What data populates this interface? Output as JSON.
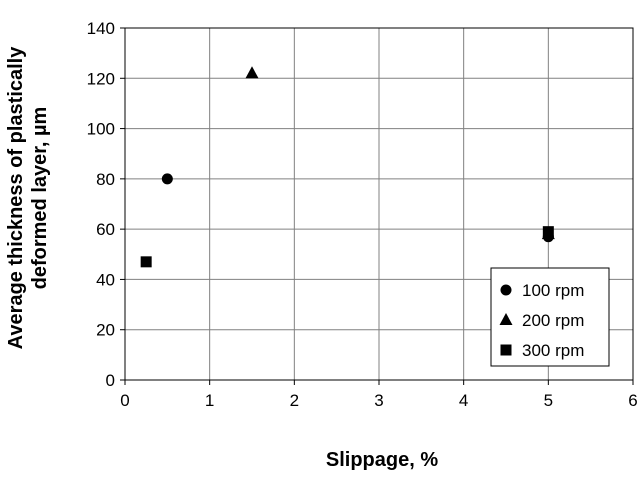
{
  "chart_data": {
    "type": "scatter",
    "xlabel": "Slippage, %",
    "ylabel_line1": "Average thickness of plastically",
    "ylabel_line2": "deformed layer, µm",
    "xlim": [
      0,
      6
    ],
    "ylim": [
      0,
      140
    ],
    "xticks": [
      0,
      1,
      2,
      3,
      4,
      5,
      6
    ],
    "yticks": [
      0,
      20,
      40,
      60,
      80,
      100,
      120,
      140
    ],
    "grid": true,
    "legend_position": "bottom-right",
    "series": [
      {
        "name": "100 rpm",
        "marker": "circle",
        "points": [
          [
            0.5,
            80
          ],
          [
            5.0,
            57
          ]
        ]
      },
      {
        "name": "200 rpm",
        "marker": "triangle",
        "points": [
          [
            1.5,
            122
          ],
          [
            5.0,
            58
          ]
        ]
      },
      {
        "name": "300 rpm",
        "marker": "square",
        "points": [
          [
            0.25,
            47
          ],
          [
            5.0,
            59
          ]
        ]
      }
    ],
    "colors": {
      "marker": "#000000",
      "grid": "#808080",
      "axis": "#000000"
    }
  }
}
